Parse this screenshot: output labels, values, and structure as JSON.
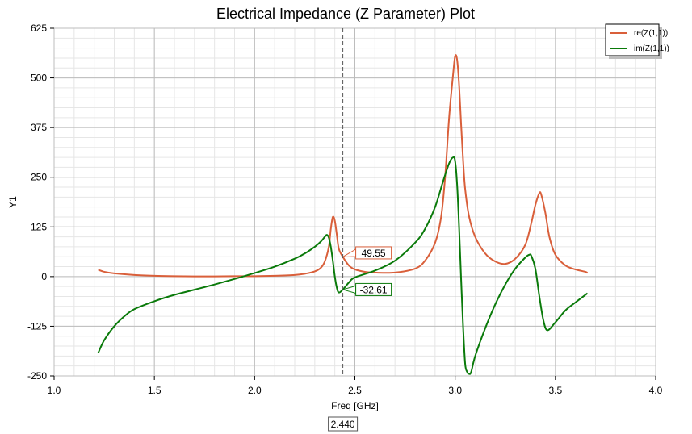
{
  "chart_data": {
    "type": "line",
    "title": "Electrical Impedance (Z Parameter) Plot",
    "xlabel": "Freq [GHz]",
    "ylabel": "Y1",
    "xlim": [
      1.0,
      4.0
    ],
    "ylim": [
      -250,
      625
    ],
    "xticks": [
      1.0,
      1.5,
      2.0,
      2.5,
      3.0,
      3.5,
      4.0
    ],
    "xtick_labels": [
      "1.0",
      "1.5",
      "2.0",
      "2.5",
      "3.0",
      "3.5",
      "4.0"
    ],
    "yticks": [
      -250,
      -125,
      0,
      125,
      250,
      375,
      500,
      625
    ],
    "ytick_labels": [
      "-250",
      "-125",
      "0",
      "125",
      "250",
      "375",
      "500",
      "625"
    ],
    "grid": true,
    "legend_position": "top-right",
    "series": [
      {
        "name": "re(Z(1,1))",
        "color": "#d95f3a",
        "x": [
          1.22,
          1.25,
          1.3,
          1.4,
          1.5,
          1.6,
          1.7,
          1.8,
          1.9,
          2.0,
          2.1,
          2.2,
          2.25,
          2.3,
          2.33,
          2.35,
          2.37,
          2.38,
          2.39,
          2.4,
          2.41,
          2.42,
          2.44,
          2.47,
          2.5,
          2.55,
          2.6,
          2.7,
          2.8,
          2.85,
          2.9,
          2.93,
          2.95,
          2.97,
          2.99,
          3.0,
          3.01,
          3.02,
          3.03,
          3.04,
          3.05,
          3.07,
          3.1,
          3.15,
          3.2,
          3.25,
          3.3,
          3.35,
          3.38,
          3.4,
          3.42,
          3.43,
          3.45,
          3.47,
          3.5,
          3.55,
          3.6,
          3.65,
          3.66
        ],
        "y": [
          17,
          12,
          8,
          4,
          2,
          1,
          0.5,
          0.5,
          1,
          1,
          2,
          4,
          7,
          13,
          22,
          38,
          75,
          120,
          150,
          140,
          105,
          70,
          49.55,
          28,
          18,
          12,
          10,
          10,
          20,
          40,
          85,
          150,
          250,
          400,
          510,
          555,
          545,
          480,
          380,
          290,
          220,
          150,
          100,
          58,
          38,
          32,
          45,
          80,
          135,
          180,
          210,
          205,
          160,
          100,
          55,
          28,
          18,
          12,
          9
        ]
      },
      {
        "name": "im(Z(1,1))",
        "color": "#0a7a0a",
        "x": [
          1.22,
          1.25,
          1.3,
          1.35,
          1.4,
          1.5,
          1.6,
          1.7,
          1.8,
          1.9,
          2.0,
          2.1,
          2.2,
          2.25,
          2.3,
          2.33,
          2.35,
          2.36,
          2.37,
          2.38,
          2.39,
          2.4,
          2.41,
          2.42,
          2.44,
          2.47,
          2.5,
          2.6,
          2.7,
          2.8,
          2.85,
          2.9,
          2.94,
          2.97,
          2.99,
          3.0,
          3.01,
          3.02,
          3.03,
          3.04,
          3.05,
          3.06,
          3.07,
          3.08,
          3.1,
          3.15,
          3.2,
          3.25,
          3.3,
          3.35,
          3.37,
          3.38,
          3.4,
          3.42,
          3.44,
          3.46,
          3.5,
          3.55,
          3.6,
          3.66
        ],
        "y": [
          -192,
          -160,
          -125,
          -100,
          -82,
          -62,
          -46,
          -33,
          -20,
          -6,
          9,
          25,
          45,
          58,
          75,
          88,
          100,
          105,
          98,
          75,
          40,
          0,
          -28,
          -40,
          -32.61,
          -15,
          -2,
          15,
          40,
          85,
          120,
          175,
          240,
          285,
          300,
          290,
          230,
          120,
          -10,
          -130,
          -220,
          -240,
          -245,
          -240,
          -200,
          -130,
          -70,
          -20,
          20,
          48,
          55,
          52,
          20,
          -50,
          -110,
          -135,
          -115,
          -85,
          -65,
          -42
        ]
      }
    ],
    "cursor": {
      "x_label": "2.440"
    },
    "markers": [
      {
        "series": "re(Z(1,1))",
        "label": "49.55"
      },
      {
        "series": "im(Z(1,1))",
        "label": "-32.61"
      }
    ]
  }
}
